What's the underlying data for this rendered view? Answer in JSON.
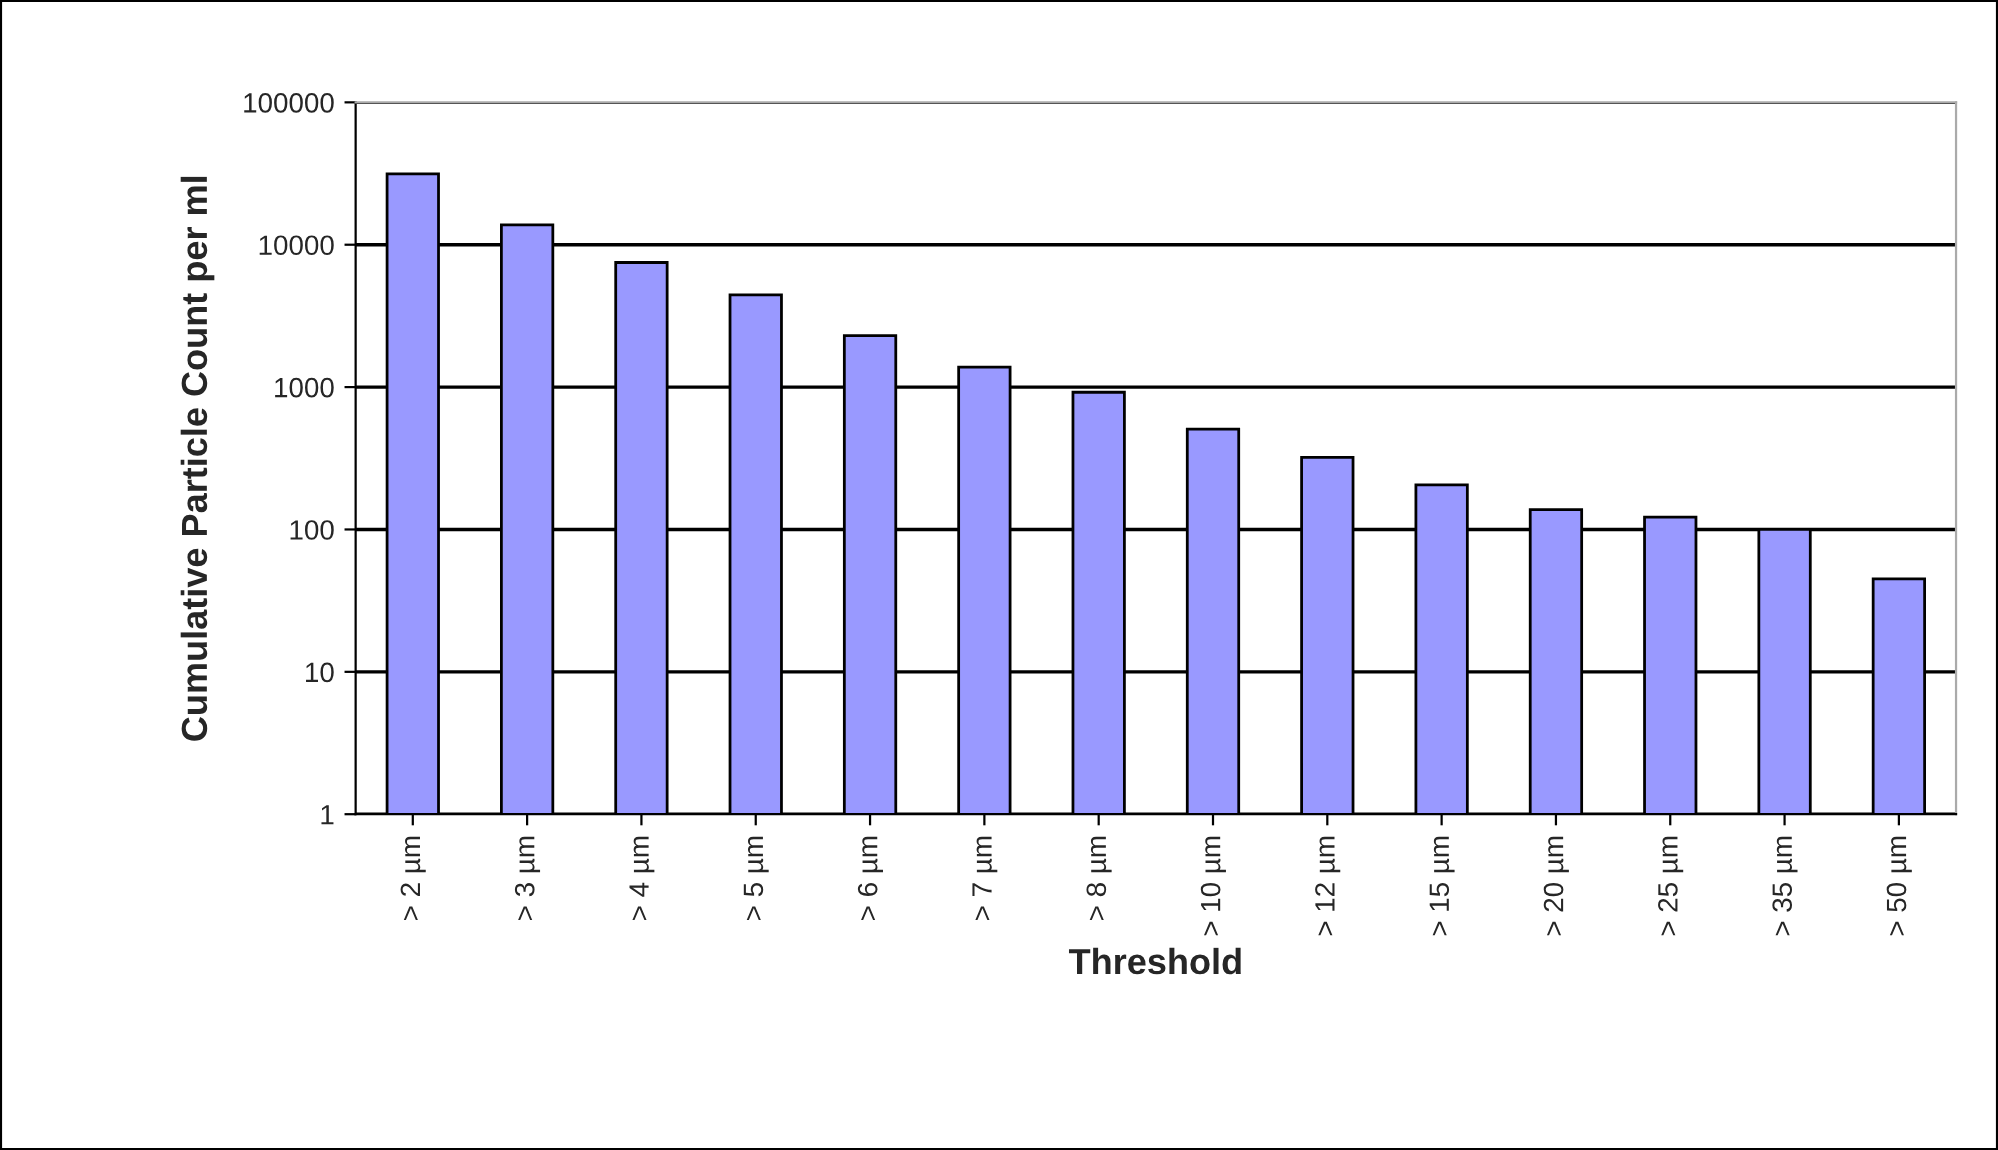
{
  "chart_data": {
    "type": "bar",
    "xlabel": "Threshold",
    "ylabel": "Cumulative Particle Count per ml",
    "categories": [
      "> 2 µm",
      "> 3 µm",
      "> 4 µm",
      "> 5 µm",
      "> 6 µm",
      "> 7 µm",
      "> 8 µm",
      "> 10 µm",
      "> 12 µm",
      "> 15 µm",
      "> 20 µm",
      "> 25 µm",
      "> 35 µm",
      "> 50 µm"
    ],
    "values": [
      31500,
      13800,
      7500,
      4450,
      2300,
      1380,
      920,
      506,
      321,
      206,
      138,
      122,
      100,
      45
    ],
    "color": "#9999ff",
    "log": "y",
    "ylim": [
      1,
      100000
    ],
    "yticks": [
      1,
      10,
      100,
      1000,
      10000,
      100000
    ],
    "grid": "y",
    "legend": false
  }
}
